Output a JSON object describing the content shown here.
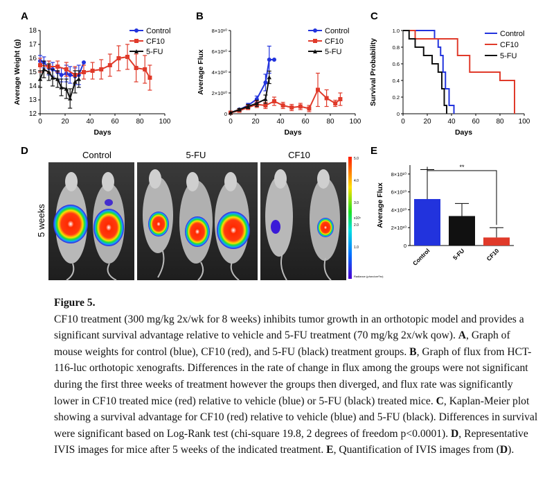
{
  "panel_letters": {
    "a": "A",
    "b": "B",
    "c": "C",
    "d": "D",
    "e": "E"
  },
  "legend": {
    "control": "Control",
    "cf10": "CF10",
    "fu": "5-FU"
  },
  "colors": {
    "control": "#2233dd",
    "cf10": "#e03a2a",
    "fu": "#111111"
  },
  "panel_d": {
    "col_control": "Control",
    "col_5fu": "5-FU",
    "col_cf10": "CF10",
    "row_label": "5 weeks",
    "colorbar_top": "5.0",
    "colorbar_mid1": "4.0",
    "colorbar_mid2": "3.0",
    "colorbar_mid3": "2.0",
    "colorbar_mid4": "1.0",
    "colorbar_unit": "x10⁵",
    "colorbar_label": "Radiance (p/sec/cm²/sr)"
  },
  "chart_data": [
    {
      "panel": "A",
      "type": "line",
      "xlabel": "Days",
      "ylabel": "Average Weight (g)",
      "xlim": [
        0,
        100
      ],
      "ylim": [
        12,
        18
      ],
      "xticks": [
        0,
        20,
        40,
        60,
        80,
        100
      ],
      "yticks": [
        12,
        13,
        14,
        15,
        16,
        17,
        18
      ],
      "series": [
        {
          "name": "Control",
          "x": [
            0,
            3,
            7,
            10,
            14,
            17,
            21,
            24,
            28,
            31,
            35
          ],
          "y": [
            15.8,
            15.7,
            15.3,
            15.2,
            15.0,
            14.8,
            14.9,
            14.8,
            14.7,
            14.8,
            15.7
          ],
          "err": [
            0.4,
            0.4,
            0.5,
            0.5,
            0.5,
            0.5,
            0.6,
            0.6,
            0.6,
            0.7,
            0.0
          ]
        },
        {
          "name": "CF10",
          "x": [
            0,
            7,
            14,
            21,
            28,
            35,
            42,
            49,
            56,
            63,
            70,
            77,
            84,
            88
          ],
          "y": [
            15.5,
            15.4,
            15.4,
            15.2,
            14.8,
            15.0,
            15.1,
            15.2,
            15.5,
            16.0,
            16.1,
            15.3,
            15.2,
            14.6
          ],
          "err": [
            0.5,
            0.4,
            0.4,
            0.5,
            0.6,
            0.5,
            0.6,
            0.7,
            0.8,
            0.9,
            0.9,
            1.0,
            1.0,
            0.9
          ]
        },
        {
          "name": "5-FU",
          "x": [
            0,
            3,
            7,
            10,
            14,
            17,
            21,
            24,
            28,
            31
          ],
          "y": [
            14.5,
            15.2,
            15.0,
            14.6,
            14.5,
            13.9,
            13.8,
            13.1,
            14.3,
            14.5
          ],
          "err": [
            0.6,
            0.6,
            0.6,
            0.6,
            0.6,
            0.6,
            0.7,
            0.7,
            0.8,
            0.6
          ]
        }
      ]
    },
    {
      "panel": "B",
      "type": "line",
      "xlabel": "Days",
      "ylabel": "Average Flux",
      "xlim": [
        0,
        100
      ],
      "ylim": [
        0,
        80000000000.0
      ],
      "xticks": [
        0,
        20,
        40,
        60,
        80,
        100
      ],
      "yticks": [
        0,
        20000000000.0,
        40000000000.0,
        60000000000.0,
        80000000000.0
      ],
      "ytick_labels": [
        "0",
        "2×10¹⁰",
        "4×10¹⁰",
        "6×10¹⁰",
        "8×10¹⁰"
      ],
      "series": [
        {
          "name": "Control",
          "x": [
            0,
            7,
            14,
            21,
            28,
            31,
            35
          ],
          "y": [
            1000000000.0,
            4000000000.0,
            8000000000.0,
            14000000000.0,
            30000000000.0,
            52000000000.0,
            52000000000.0
          ],
          "err": [
            0,
            1000000000.0,
            2000000000.0,
            3000000000.0,
            8000000000.0,
            13000000000.0,
            0
          ]
        },
        {
          "name": "CF10",
          "x": [
            0,
            7,
            14,
            21,
            28,
            35,
            42,
            49,
            56,
            63,
            70,
            77,
            84,
            88
          ],
          "y": [
            1000000000.0,
            3000000000.0,
            6000000000.0,
            9000000000.0,
            8000000000.0,
            12000000000.0,
            8000000000.0,
            6000000000.0,
            7000000000.0,
            5000000000.0,
            23000000000.0,
            15000000000.0,
            10000000000.0,
            14000000000.0
          ],
          "err": [
            0,
            1000000000.0,
            2000000000.0,
            3000000000.0,
            3000000000.0,
            4000000000.0,
            3000000000.0,
            3000000000.0,
            3000000000.0,
            3000000000.0,
            16000000000.0,
            8000000000.0,
            3000000000.0,
            6000000000.0
          ]
        },
        {
          "name": "5-FU",
          "x": [
            0,
            7,
            14,
            21,
            28,
            31
          ],
          "y": [
            1000000000.0,
            4000000000.0,
            7000000000.0,
            10000000000.0,
            14000000000.0,
            35000000000.0
          ],
          "err": [
            0,
            1000000000.0,
            2000000000.0,
            3000000000.0,
            4000000000.0,
            6000000000.0
          ]
        }
      ]
    },
    {
      "panel": "C",
      "type": "line",
      "xlabel": "Days",
      "ylabel": "Survival Probability",
      "xlim": [
        0,
        100
      ],
      "ylim": [
        0,
        1.0
      ],
      "xticks": [
        0,
        20,
        40,
        60,
        80,
        100
      ],
      "yticks": [
        0,
        0.2,
        0.4,
        0.6,
        0.8,
        1.0
      ],
      "ytick_labels": [
        "0",
        "0.2",
        "0.4",
        "0.6",
        "0.8",
        "1.0"
      ],
      "legend_position": "top-right",
      "series": [
        {
          "name": "Control",
          "x": [
            0,
            22,
            26,
            29,
            31,
            33,
            35,
            38,
            42
          ],
          "y": [
            1.0,
            1.0,
            0.9,
            0.8,
            0.7,
            0.5,
            0.3,
            0.1,
            0.0
          ]
        },
        {
          "name": "CF10",
          "x": [
            0,
            10,
            35,
            45,
            55,
            80,
            92
          ],
          "y": [
            1.0,
            0.9,
            0.9,
            0.7,
            0.5,
            0.4,
            0.0
          ]
        },
        {
          "name": "5-FU",
          "x": [
            0,
            5,
            10,
            17,
            24,
            29,
            32,
            34,
            36
          ],
          "y": [
            1.0,
            0.9,
            0.8,
            0.7,
            0.6,
            0.5,
            0.3,
            0.1,
            0.0
          ]
        }
      ]
    },
    {
      "panel": "E",
      "type": "bar",
      "ylabel": "Average Flux",
      "categories": [
        "Control",
        "5-FU",
        "CF10"
      ],
      "values": [
        52000000000.0,
        33000000000.0,
        9000000000.0
      ],
      "errors": [
        33000000000.0,
        14000000000.0,
        11000000000.0
      ],
      "ylim": [
        0,
        90000000000.0
      ],
      "yticks": [
        0,
        20000000000.0,
        40000000000.0,
        60000000000.0,
        80000000000.0
      ],
      "ytick_labels": [
        "0",
        "2×10¹⁰",
        "4×10¹⁰",
        "6×10¹⁰",
        "8×10¹⁰"
      ],
      "significance": "**"
    }
  ],
  "caption": {
    "title": "Figure 5.",
    "p1": "CF10 treatment (300 mg/kg 2x/wk for 8 weeks) inhibits tumor growth in an orthotopic model and provides a significant survival advantage relative to vehicle and 5-FU treatment (70 mg/kg 2x/wk qow). ",
    "a": "A",
    "p2": ", Graph of mouse weights for control (blue), CF10 (red), and 5-FU (black) treatment groups. ",
    "b": "B",
    "p3": ", Graph of flux from HCT-116-luc orthotopic xenografts. Differences in the rate of change in flux among the groups were not significant during the first three weeks of treatment however the groups then diverged, and flux rate was significantly lower in CF10 treated mice (red) relative to vehicle (blue) or 5-FU (black) treated mice. ",
    "c": "C",
    "p4": ", Kaplan-Meier plot showing a survival advantage for CF10 (red) relative to vehicle (blue) and 5-FU (black). Differences in survival were significant based on Log-Rank test (chi-square 19.8, 2 degrees of freedom p<0.0001). ",
    "d": "D",
    "p5": ", Representative IVIS images for mice after 5 weeks of the indicated treatment. ",
    "e": "E",
    "p6": ", Quantification of IVIS images from (",
    "d2": "D",
    "p7": ")."
  }
}
